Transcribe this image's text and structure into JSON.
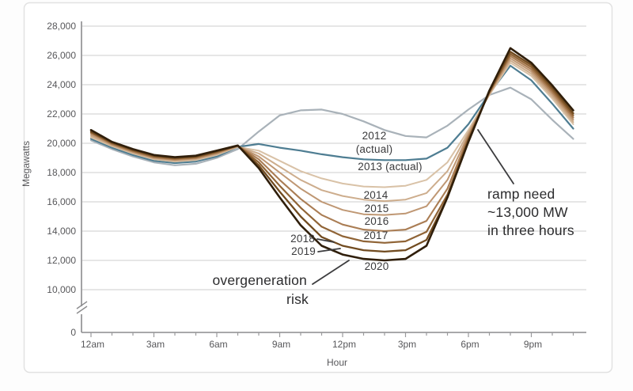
{
  "chart_data": {
    "type": "line",
    "title": "",
    "xlabel": "Hour",
    "ylabel": "Megawatts",
    "grid": true,
    "y_axis_break_between": [
      0,
      10000
    ],
    "ylim": [
      10000,
      28000
    ],
    "x_ticks": [
      {
        "hour": 0,
        "label": "12am"
      },
      {
        "hour": 3,
        "label": "3am"
      },
      {
        "hour": 6,
        "label": "6am"
      },
      {
        "hour": 9,
        "label": "9am"
      },
      {
        "hour": 12,
        "label": "12pm"
      },
      {
        "hour": 15,
        "label": "3pm"
      },
      {
        "hour": 18,
        "label": "6pm"
      },
      {
        "hour": 21,
        "label": "9pm"
      }
    ],
    "y_ticks": [
      {
        "value": 28000,
        "label": "28,000"
      },
      {
        "value": 26000,
        "label": "26,000"
      },
      {
        "value": 24000,
        "label": "24,000"
      },
      {
        "value": 22000,
        "label": "22,000"
      },
      {
        "value": 20000,
        "label": "20,000"
      },
      {
        "value": 18000,
        "label": "18,000"
      },
      {
        "value": 16000,
        "label": "16,000"
      },
      {
        "value": 14000,
        "label": "14,000"
      },
      {
        "value": 12000,
        "label": "12,000"
      },
      {
        "value": 10000,
        "label": "10,000"
      },
      {
        "value": 0,
        "label": "0"
      }
    ],
    "hours": [
      0,
      1,
      2,
      3,
      4,
      5,
      6,
      7,
      8,
      9,
      10,
      11,
      12,
      13,
      14,
      15,
      16,
      17,
      18,
      19,
      20,
      21,
      22,
      23
    ],
    "series": [
      {
        "name": "2012 (actual)",
        "color": "#a9b2b9",
        "width": 2.2,
        "values": [
          20200,
          19600,
          19100,
          18700,
          18500,
          18600,
          19000,
          19600,
          20800,
          21900,
          22250,
          22300,
          22000,
          21500,
          20900,
          20500,
          20400,
          21200,
          22300,
          23300,
          23800,
          23000,
          21600,
          20300
        ]
      },
      {
        "name": "2013 (actual)",
        "color": "#4e7d92",
        "width": 2.2,
        "values": [
          20300,
          19700,
          19200,
          18800,
          18650,
          18750,
          19100,
          19750,
          19950,
          19700,
          19500,
          19250,
          19050,
          18900,
          18850,
          18850,
          18950,
          19700,
          21300,
          23400,
          25300,
          24300,
          22700,
          21000
        ]
      },
      {
        "name": "2014",
        "color": "#d9c2a7",
        "width": 2,
        "values": [
          20400,
          19800,
          19300,
          18900,
          18750,
          18850,
          19200,
          19750,
          19500,
          18800,
          18100,
          17600,
          17250,
          17050,
          17000,
          17100,
          17500,
          18700,
          20900,
          23300,
          25500,
          24600,
          23050,
          21300
        ]
      },
      {
        "name": "2015",
        "color": "#cdad8d",
        "width": 2,
        "values": [
          20500,
          19850,
          19350,
          18950,
          18800,
          18900,
          19250,
          19780,
          19300,
          18400,
          17500,
          16800,
          16400,
          16150,
          16050,
          16150,
          16600,
          18100,
          20750,
          23350,
          25650,
          24750,
          23200,
          21450
        ]
      },
      {
        "name": "2016",
        "color": "#bf9773",
        "width": 2,
        "values": [
          20600,
          19900,
          19400,
          19000,
          18850,
          18950,
          19300,
          19800,
          19100,
          18000,
          16900,
          16000,
          15450,
          15150,
          15100,
          15200,
          15700,
          17500,
          20600,
          23400,
          25800,
          24900,
          23350,
          21600
        ]
      },
      {
        "name": "2017",
        "color": "#aa7d54",
        "width": 2.1,
        "values": [
          20700,
          19950,
          19450,
          19050,
          18900,
          19000,
          19350,
          19820,
          18900,
          17500,
          16200,
          15100,
          14450,
          14100,
          14000,
          14100,
          14700,
          16900,
          20450,
          23450,
          25950,
          25050,
          23500,
          21750
        ]
      },
      {
        "name": "2018",
        "color": "#906436",
        "width": 2.2,
        "values": [
          20750,
          20000,
          19500,
          19100,
          18950,
          19050,
          19400,
          19830,
          18700,
          17100,
          15600,
          14300,
          13650,
          13300,
          13200,
          13300,
          13950,
          16500,
          20300,
          23500,
          26100,
          25200,
          23650,
          21900
        ]
      },
      {
        "name": "2019",
        "color": "#714b20",
        "width": 2.3,
        "values": [
          20800,
          20050,
          19550,
          19150,
          19000,
          19100,
          19450,
          19840,
          18500,
          16700,
          15000,
          13600,
          13000,
          12700,
          12600,
          12700,
          13400,
          16300,
          20200,
          23550,
          26250,
          25350,
          23800,
          22050
        ]
      },
      {
        "name": "2020",
        "color": "#2f1e0a",
        "width": 2.6,
        "values": [
          20900,
          20100,
          19600,
          19200,
          19050,
          19150,
          19500,
          19850,
          18300,
          16300,
          14400,
          13000,
          12400,
          12100,
          12000,
          12100,
          13000,
          16300,
          20100,
          23600,
          26500,
          25500,
          23950,
          22250
        ]
      }
    ],
    "labels": {
      "s2012_line1": "2012",
      "s2012_line2": "(actual)",
      "s2013": "2013 (actual)",
      "s2014": "2014",
      "s2015": "2015",
      "s2016": "2016",
      "s2017": "2017",
      "s2018": "2018",
      "s2019": "2019",
      "s2020": "2020",
      "overgen_line1": "overgeneration",
      "overgen_line2": "risk",
      "ramp_line1": "ramp need",
      "ramp_line2": "~13,000 MW",
      "ramp_line3": "in three hours"
    }
  }
}
